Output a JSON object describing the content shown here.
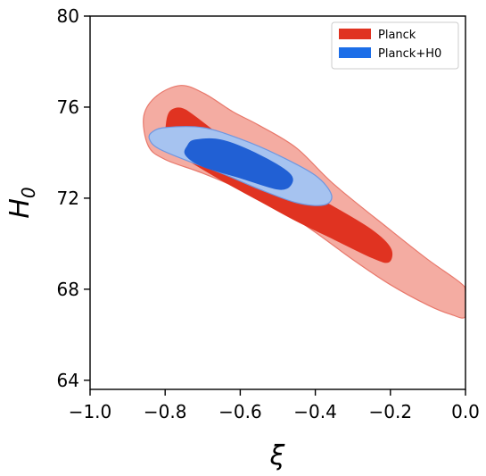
{
  "chart_data": {
    "type": "contour",
    "xlabel": "ξ",
    "ylabel_base": "H",
    "ylabel_sub": "0",
    "xlim": [
      -1.0,
      0.0
    ],
    "ylim": [
      63.6,
      80.0
    ],
    "x_ticks": [
      -1.0,
      -0.8,
      -0.6,
      -0.4,
      -0.2,
      0.0
    ],
    "x_tick_labels": [
      "−1.0",
      "−0.8",
      "−0.6",
      "−0.4",
      "−0.2",
      "0.0"
    ],
    "y_ticks": [
      64,
      68,
      72,
      76,
      80
    ],
    "y_tick_labels": [
      "64",
      "68",
      "72",
      "76",
      "80"
    ],
    "grid": false,
    "legend_position": "top-right",
    "series": [
      {
        "name": "Planck",
        "color": "#e03321",
        "regions": [
          {
            "level": "95%",
            "fill": "#f4aca2",
            "stroke": "#e8786b",
            "points": [
              [
                -0.857,
                75.6
              ],
              [
                -0.822,
                76.5
              ],
              [
                -0.758,
                76.95
              ],
              [
                -0.696,
                76.6
              ],
              [
                -0.62,
                75.8
              ],
              [
                -0.55,
                75.2
              ],
              [
                -0.45,
                74.2
              ],
              [
                -0.35,
                72.6
              ],
              [
                -0.2,
                70.6
              ],
              [
                -0.1,
                69.3
              ],
              [
                -0.015,
                68.3
              ],
              [
                0.0,
                67.9
              ],
              [
                0.0,
                66.8
              ],
              [
                -0.04,
                66.9
              ],
              [
                -0.1,
                67.3
              ],
              [
                -0.2,
                68.2
              ],
              [
                -0.3,
                69.3
              ],
              [
                -0.4,
                70.5
              ],
              [
                -0.5,
                71.6
              ],
              [
                -0.6,
                72.4
              ],
              [
                -0.7,
                73.1
              ],
              [
                -0.8,
                73.7
              ],
              [
                -0.845,
                74.3
              ]
            ]
          },
          {
            "level": "68%",
            "fill": "#e03321",
            "stroke": "#e03321",
            "points": [
              [
                -0.797,
                75.2
              ],
              [
                -0.787,
                75.8
              ],
              [
                -0.758,
                75.95
              ],
              [
                -0.722,
                75.6
              ],
              [
                -0.65,
                74.7
              ],
              [
                -0.55,
                73.6
              ],
              [
                -0.45,
                72.5
              ],
              [
                -0.35,
                71.6
              ],
              [
                -0.25,
                70.6
              ],
              [
                -0.2,
                69.8
              ],
              [
                -0.205,
                69.2
              ],
              [
                -0.25,
                69.4
              ],
              [
                -0.35,
                70.2
              ],
              [
                -0.45,
                71.0
              ],
              [
                -0.55,
                71.9
              ],
              [
                -0.65,
                72.8
              ],
              [
                -0.75,
                73.8
              ],
              [
                -0.795,
                74.5
              ]
            ]
          }
        ]
      },
      {
        "name": "Planck+H0",
        "color": "#1c6ee8",
        "regions": [
          {
            "level": "95%",
            "fill": "#a6c3f0",
            "stroke": "#6f97e0",
            "points": [
              [
                -0.8,
                75.1
              ],
              [
                -0.7,
                75.1
              ],
              [
                -0.6,
                74.6
              ],
              [
                -0.5,
                73.9
              ],
              [
                -0.4,
                73.0
              ],
              [
                -0.357,
                72.15
              ],
              [
                -0.377,
                71.7
              ],
              [
                -0.45,
                71.8
              ],
              [
                -0.55,
                72.4
              ],
              [
                -0.65,
                73.1
              ],
              [
                -0.75,
                73.7
              ],
              [
                -0.82,
                74.2
              ],
              [
                -0.842,
                74.6
              ],
              [
                -0.835,
                74.9
              ]
            ]
          },
          {
            "level": "68%",
            "fill": "#2160d4",
            "stroke": "#2160d4",
            "points": [
              [
                -0.72,
                74.55
              ],
              [
                -0.65,
                74.55
              ],
              [
                -0.55,
                73.9
              ],
              [
                -0.47,
                73.1
              ],
              [
                -0.465,
                72.6
              ],
              [
                -0.5,
                72.4
              ],
              [
                -0.6,
                72.9
              ],
              [
                -0.7,
                73.4
              ],
              [
                -0.745,
                73.9
              ],
              [
                -0.74,
                74.3
              ]
            ]
          }
        ]
      }
    ]
  }
}
